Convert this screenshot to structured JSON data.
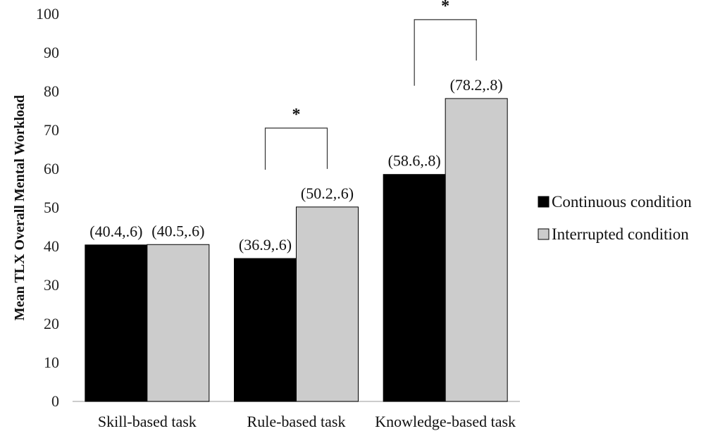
{
  "chart_data": {
    "type": "bar",
    "ylabel": "Mean TLX Overall Mental Workload",
    "xlabel": "",
    "ylim": [
      0,
      100
    ],
    "yticks": [
      0,
      10,
      20,
      30,
      40,
      50,
      60,
      70,
      80,
      90,
      100
    ],
    "grid": false,
    "legend_position": "right",
    "categories": [
      "Skill-based task",
      "Rule-based task",
      "Knowledge-based task"
    ],
    "series": [
      {
        "name": "Continuous condition",
        "color": "#000000",
        "values": [
          40.4,
          36.9,
          58.6
        ],
        "labels": [
          "(40.4,.6)",
          "(36.9,.6)",
          "(58.6,.8)"
        ]
      },
      {
        "name": "Interrupted condition",
        "color": "#cccccc",
        "values": [
          40.5,
          50.2,
          78.2
        ],
        "labels": [
          "(40.5,.6)",
          "(50.2,.6)",
          "(78.2,.8)"
        ]
      }
    ],
    "significance": [
      {
        "category_index": 1,
        "marker": "*"
      },
      {
        "category_index": 2,
        "marker": "*"
      }
    ]
  }
}
